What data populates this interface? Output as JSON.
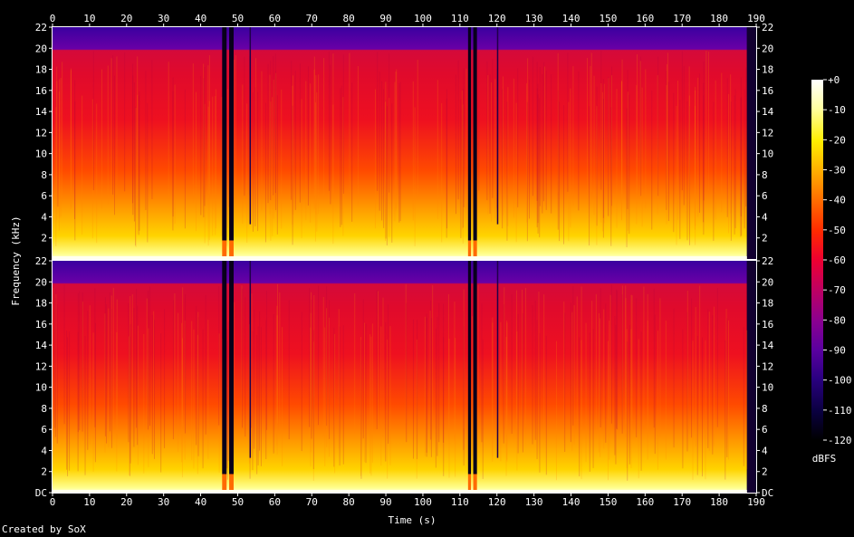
{
  "footer": "Created by SoX",
  "chart_data": {
    "type": "heatmap",
    "xlabel": "Time (s)",
    "ylabel": "Frequency (kHz)",
    "xlim": [
      0,
      190
    ],
    "x_ticks": [
      "0",
      "10",
      "20",
      "30",
      "40",
      "50",
      "60",
      "70",
      "80",
      "90",
      "100",
      "110",
      "120",
      "130",
      "140",
      "150",
      "160",
      "170",
      "180",
      "190"
    ],
    "channels": [
      {
        "ylim": [
          0,
          22
        ],
        "y_ticks": [
          "2",
          "4",
          "6",
          "8",
          "10",
          "12",
          "14",
          "16",
          "18",
          "20",
          "22"
        ]
      },
      {
        "ylim": [
          0,
          22
        ],
        "y_ticks": [
          "DC",
          "2",
          "4",
          "6",
          "8",
          "10",
          "12",
          "14",
          "16",
          "18",
          "20",
          "22"
        ]
      }
    ],
    "colorbar": {
      "label": "dBFS",
      "range": [
        -120,
        0
      ],
      "ticks": [
        "+0",
        "-10",
        "-20",
        "-30",
        "-40",
        "-50",
        "-60",
        "-70",
        "-80",
        "-90",
        "-100",
        "-110",
        "-120"
      ],
      "colors": [
        "#ffffff",
        "#ffffa0",
        "#ffee00",
        "#ffb000",
        "#ff7000",
        "#ff2a00",
        "#ee0030",
        "#c00060",
        "#8a0090",
        "#5a00a0",
        "#2a0080",
        "#0a0040",
        "#000000"
      ]
    },
    "audio_end_s": 187.5,
    "quiet_segments_s": [
      [
        45.8,
        47.0
      ],
      [
        47.7,
        48.9
      ],
      [
        112.2,
        113.0
      ],
      [
        113.6,
        114.6
      ]
    ],
    "transient_markers_s": [
      53.2,
      120.0
    ]
  }
}
